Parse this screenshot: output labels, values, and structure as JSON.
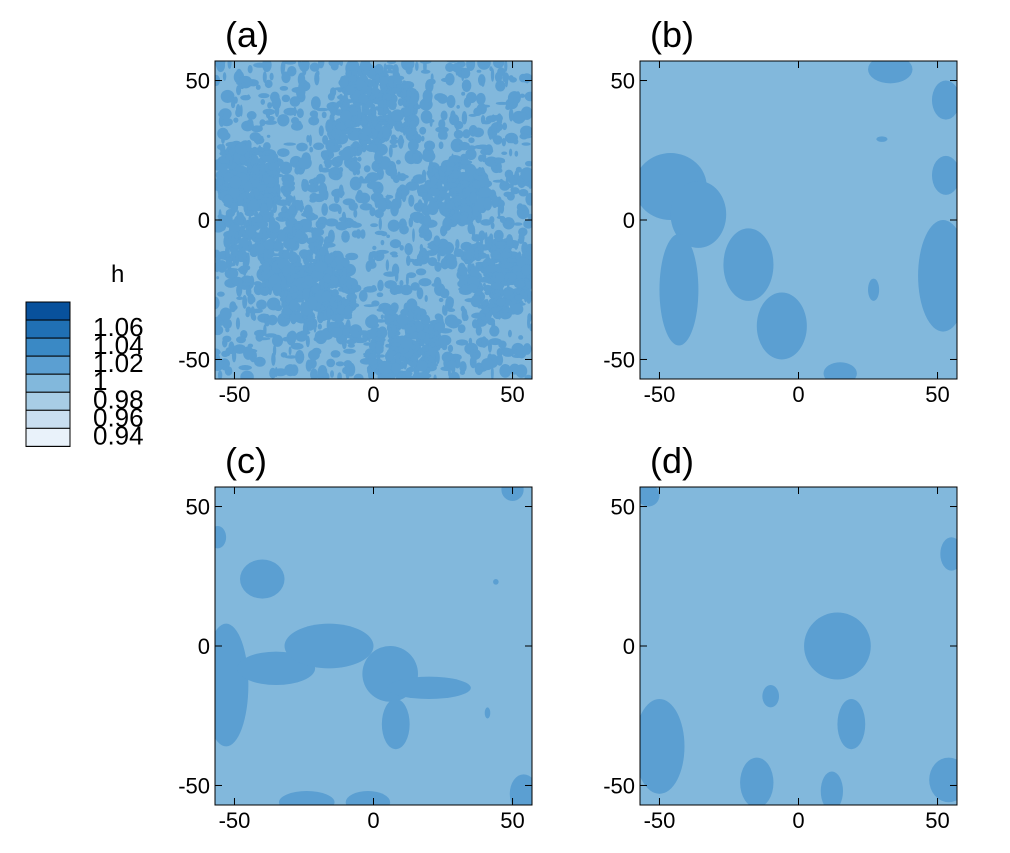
{
  "colorbar": {
    "title": "h",
    "levels": [
      "1.06",
      "1.04",
      "1.02",
      "1",
      "0.98",
      "0.96",
      "0.94"
    ],
    "colors": [
      "#08519c",
      "#2070b4",
      "#3a89c5",
      "#5b9fd2",
      "#82b8dc",
      "#a8cde5",
      "#c9def0",
      "#e9f2fa"
    ]
  },
  "chart_data": [
    {
      "type": "heatmap",
      "panel": "(a)",
      "title": "(a)",
      "xlabel": "",
      "ylabel": "",
      "xticks": [
        "-50",
        "0",
        "50"
      ],
      "yticks": [
        "50",
        "0",
        "-50"
      ],
      "xlim": [
        -57,
        57
      ],
      "ylim": [
        -57,
        57
      ],
      "background_level": "0.98 to 1",
      "background_color": "#82b8dc",
      "feature_color": "#5b9fd2",
      "pattern": "fine-grained noisy patches",
      "seed": 11
    },
    {
      "type": "heatmap",
      "panel": "(b)",
      "title": "(b)",
      "xlabel": "",
      "ylabel": "",
      "xticks": [
        "-50",
        "0",
        "50"
      ],
      "yticks": [
        "50",
        "0",
        "-50"
      ],
      "xlim": [
        -57,
        57
      ],
      "ylim": [
        -57,
        57
      ],
      "background_level": "0.98 to 1",
      "background_color": "#82b8dc",
      "feature_color": "#5b9fd2",
      "pattern": "smooth blobs",
      "blobs": [
        {
          "x": -46,
          "y": 12,
          "rx": 13,
          "ry": 12
        },
        {
          "x": -36,
          "y": 2,
          "rx": 10,
          "ry": 12
        },
        {
          "x": -43,
          "y": -25,
          "rx": 7,
          "ry": 20
        },
        {
          "x": -18,
          "y": -16,
          "rx": 9,
          "ry": 13
        },
        {
          "x": -6,
          "y": -38,
          "rx": 9,
          "ry": 12
        },
        {
          "x": 33,
          "y": 54,
          "rx": 8,
          "ry": 5
        },
        {
          "x": 53,
          "y": 43,
          "rx": 5,
          "ry": 7
        },
        {
          "x": 53,
          "y": 16,
          "rx": 5,
          "ry": 7
        },
        {
          "x": 52,
          "y": -20,
          "rx": 9,
          "ry": 20
        },
        {
          "x": 30,
          "y": 29,
          "rx": 2,
          "ry": 1
        },
        {
          "x": 27,
          "y": -25,
          "rx": 2,
          "ry": 4
        },
        {
          "x": 15,
          "y": -55,
          "rx": 6,
          "ry": 4
        }
      ]
    },
    {
      "type": "heatmap",
      "panel": "(c)",
      "title": "(c)",
      "xlabel": "",
      "ylabel": "",
      "xticks": [
        "-50",
        "0",
        "50"
      ],
      "yticks": [
        "50",
        "0",
        "-50"
      ],
      "xlim": [
        -57,
        57
      ],
      "ylim": [
        -57,
        57
      ],
      "background_level": "0.98 to 1",
      "background_color": "#82b8dc",
      "feature_color": "#5b9fd2",
      "pattern": "smooth blobs",
      "blobs": [
        {
          "x": -40,
          "y": 24,
          "rx": 8,
          "ry": 7
        },
        {
          "x": -56,
          "y": 39,
          "rx": 3,
          "ry": 4
        },
        {
          "x": -53,
          "y": -14,
          "rx": 8,
          "ry": 22
        },
        {
          "x": -35,
          "y": -8,
          "rx": 14,
          "ry": 6
        },
        {
          "x": -16,
          "y": 0,
          "rx": 16,
          "ry": 8
        },
        {
          "x": 6,
          "y": -10,
          "rx": 10,
          "ry": 10
        },
        {
          "x": 20,
          "y": -15,
          "rx": 15,
          "ry": 4
        },
        {
          "x": 8,
          "y": -28,
          "rx": 5,
          "ry": 9
        },
        {
          "x": 50,
          "y": 56,
          "rx": 4,
          "ry": 4
        },
        {
          "x": 44,
          "y": 23,
          "rx": 1,
          "ry": 1
        },
        {
          "x": 41,
          "y": -24,
          "rx": 1,
          "ry": 2
        },
        {
          "x": -24,
          "y": -56,
          "rx": 10,
          "ry": 4
        },
        {
          "x": -2,
          "y": -56,
          "rx": 8,
          "ry": 4
        },
        {
          "x": 54,
          "y": -53,
          "rx": 5,
          "ry": 7
        }
      ]
    },
    {
      "type": "heatmap",
      "panel": "(d)",
      "title": "(d)",
      "xlabel": "",
      "ylabel": "",
      "xticks": [
        "-50",
        "0",
        "50"
      ],
      "yticks": [
        "50",
        "0",
        "-50"
      ],
      "xlim": [
        -57,
        57
      ],
      "ylim": [
        -57,
        57
      ],
      "background_level": "0.98 to 1",
      "background_color": "#82b8dc",
      "feature_color": "#5b9fd2",
      "pattern": "smooth blobs",
      "blobs": [
        {
          "x": -54,
          "y": 54,
          "rx": 4,
          "ry": 4
        },
        {
          "x": 55,
          "y": 33,
          "rx": 4,
          "ry": 6
        },
        {
          "x": 14,
          "y": 0,
          "rx": 12,
          "ry": 12
        },
        {
          "x": 19,
          "y": -28,
          "rx": 5,
          "ry": 9
        },
        {
          "x": -10,
          "y": -18,
          "rx": 3,
          "ry": 4
        },
        {
          "x": -50,
          "y": -36,
          "rx": 9,
          "ry": 17
        },
        {
          "x": -15,
          "y": -49,
          "rx": 6,
          "ry": 9
        },
        {
          "x": 12,
          "y": -52,
          "rx": 4,
          "ry": 7
        },
        {
          "x": 54,
          "y": -48,
          "rx": 7,
          "ry": 8
        }
      ]
    }
  ]
}
